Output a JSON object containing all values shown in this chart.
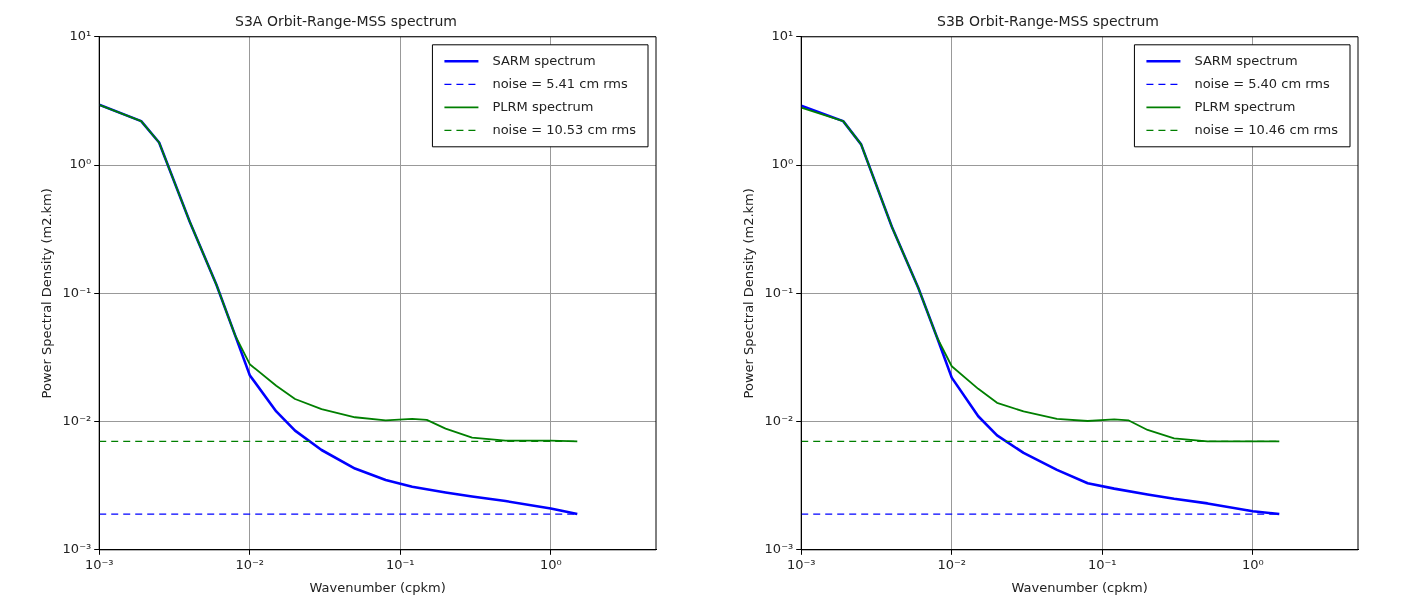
{
  "chart_data": [
    {
      "type": "line",
      "title": "S3A Orbit-Range-MSS spectrum",
      "xlabel": "Wavenumber (cpkm)",
      "ylabel": "Power Spectral Density (m2.km)",
      "log": "xy",
      "grid": true,
      "legend": "top right",
      "marker": "none",
      "xlim": [
        0.001,
        5
      ],
      "ylim": [
        0.001,
        10
      ],
      "xticks": [
        {
          "value": 0.001,
          "label": "10⁻³"
        },
        {
          "value": 0.01,
          "label": "10⁻²"
        },
        {
          "value": 0.1,
          "label": "10⁻¹"
        },
        {
          "value": 1,
          "label": "10⁰"
        }
      ],
      "yticks": [
        {
          "value": 0.001,
          "label": "10⁻³"
        },
        {
          "value": 0.01,
          "label": "10⁻²"
        },
        {
          "value": 0.1,
          "label": "10⁻¹"
        },
        {
          "value": 1,
          "label": "10⁰"
        },
        {
          "value": 10,
          "label": "10¹"
        }
      ],
      "series": [
        {
          "name": "SARM spectrum",
          "color": "#0000ff",
          "line_style": "solid",
          "x": [
            0.001,
            0.0019,
            0.0025,
            0.004,
            0.006,
            0.008,
            0.01,
            0.015,
            0.02,
            0.03,
            0.05,
            0.08,
            0.12,
            0.2,
            0.3,
            0.5,
            1,
            1.5
          ],
          "values": [
            2.95,
            2.2,
            1.5,
            0.36,
            0.117,
            0.047,
            0.023,
            0.012,
            0.0085,
            0.006,
            0.0043,
            0.0035,
            0.0031,
            0.0028,
            0.0026,
            0.0024,
            0.0021,
            0.0019
          ]
        },
        {
          "name": "noise = 5.41 cm rms",
          "color": "#0000ff",
          "line_style": "dashed",
          "x": [
            0.001,
            1.5
          ],
          "values": [
            0.0019,
            0.0019
          ]
        },
        {
          "name": "PLRM spectrum",
          "color": "#007f00",
          "line_style": "solid",
          "x": [
            0.001,
            0.0019,
            0.0025,
            0.004,
            0.006,
            0.008,
            0.01,
            0.015,
            0.02,
            0.03,
            0.05,
            0.08,
            0.12,
            0.15,
            0.2,
            0.3,
            0.5,
            1,
            1.5
          ],
          "values": [
            2.95,
            2.2,
            1.5,
            0.36,
            0.117,
            0.047,
            0.028,
            0.019,
            0.015,
            0.0125,
            0.0108,
            0.0102,
            0.0105,
            0.0103,
            0.0088,
            0.0075,
            0.0071,
            0.0071,
            0.007
          ]
        },
        {
          "name": "noise = 10.53 cm rms",
          "color": "#007f00",
          "line_style": "dashed",
          "x": [
            0.001,
            1.5
          ],
          "values": [
            0.007,
            0.007
          ]
        }
      ]
    },
    {
      "type": "line",
      "title": "S3B Orbit-Range-MSS spectrum",
      "xlabel": "Wavenumber (cpkm)",
      "ylabel": "Power Spectral Density (m2.km)",
      "log": "xy",
      "grid": true,
      "legend": "top right",
      "marker": "none",
      "xlim": [
        0.001,
        5
      ],
      "ylim": [
        0.001,
        10
      ],
      "xticks": [
        {
          "value": 0.001,
          "label": "10⁻³"
        },
        {
          "value": 0.01,
          "label": "10⁻²"
        },
        {
          "value": 0.1,
          "label": "10⁻¹"
        },
        {
          "value": 1,
          "label": "10⁰"
        }
      ],
      "yticks": [
        {
          "value": 0.001,
          "label": "10⁻³"
        },
        {
          "value": 0.01,
          "label": "10⁻²"
        },
        {
          "value": 0.1,
          "label": "10⁻¹"
        },
        {
          "value": 1,
          "label": "10⁰"
        },
        {
          "value": 10,
          "label": "10¹"
        }
      ],
      "series": [
        {
          "name": "SARM spectrum",
          "color": "#0000ff",
          "line_style": "solid",
          "x": [
            0.001,
            0.0019,
            0.0025,
            0.004,
            0.006,
            0.008,
            0.01,
            0.015,
            0.02,
            0.03,
            0.05,
            0.08,
            0.12,
            0.2,
            0.3,
            0.5,
            1,
            1.5
          ],
          "values": [
            2.9,
            2.2,
            1.45,
            0.33,
            0.11,
            0.045,
            0.022,
            0.011,
            0.0078,
            0.0057,
            0.0042,
            0.0033,
            0.003,
            0.0027,
            0.0025,
            0.0023,
            0.002,
            0.0019
          ]
        },
        {
          "name": "noise = 5.40 cm rms",
          "color": "#0000ff",
          "line_style": "dashed",
          "x": [
            0.001,
            1.5
          ],
          "values": [
            0.0019,
            0.0019
          ]
        },
        {
          "name": "PLRM spectrum",
          "color": "#007f00",
          "line_style": "solid",
          "x": [
            0.001,
            0.0019,
            0.0025,
            0.004,
            0.006,
            0.008,
            0.01,
            0.015,
            0.02,
            0.03,
            0.05,
            0.08,
            0.12,
            0.15,
            0.2,
            0.3,
            0.5,
            1,
            1.5
          ],
          "values": [
            2.8,
            2.2,
            1.45,
            0.33,
            0.11,
            0.045,
            0.027,
            0.018,
            0.014,
            0.012,
            0.0105,
            0.0101,
            0.0104,
            0.0102,
            0.0086,
            0.0074,
            0.007,
            0.007,
            0.007
          ]
        },
        {
          "name": "noise = 10.46 cm rms",
          "color": "#007f00",
          "line_style": "dashed",
          "x": [
            0.001,
            1.5
          ],
          "values": [
            0.007,
            0.007
          ]
        }
      ]
    }
  ]
}
